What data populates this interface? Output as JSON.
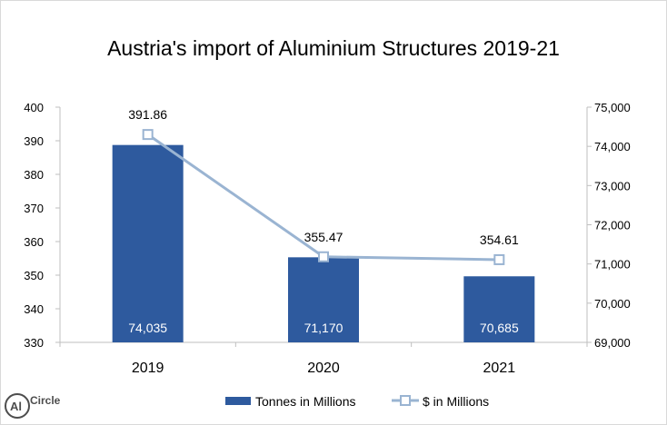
{
  "chart_data": {
    "type": "bar",
    "title": "Austria's import of Aluminium Structures 2019-21",
    "categories": [
      "2019",
      "2020",
      "2021"
    ],
    "series": [
      {
        "name": "Tonnes in Millions",
        "type": "bar",
        "axis": "right",
        "values": [
          74035,
          71170,
          70685
        ],
        "labels": [
          "74,035",
          "71,170",
          "70,685"
        ]
      },
      {
        "name": "$ in Millions",
        "type": "line",
        "axis": "left",
        "values": [
          391.86,
          355.47,
          354.61
        ],
        "labels": [
          "391.86",
          "355.47",
          "354.61"
        ]
      }
    ],
    "y_left": {
      "range": [
        330,
        400
      ],
      "ticks": [
        "330",
        "340",
        "350",
        "360",
        "370",
        "380",
        "390",
        "400"
      ]
    },
    "y_right": {
      "range": [
        69000,
        75000
      ],
      "ticks": [
        "69,000",
        "70,000",
        "71,000",
        "72,000",
        "73,000",
        "74,000",
        "75,000"
      ]
    },
    "grid": false,
    "legend_position": "bottom",
    "colors": {
      "bar": "#2e5a9e",
      "line": "#9ab4d2",
      "marker_fill": "#ffffff"
    }
  },
  "logo": {
    "text": "AlCircle"
  }
}
